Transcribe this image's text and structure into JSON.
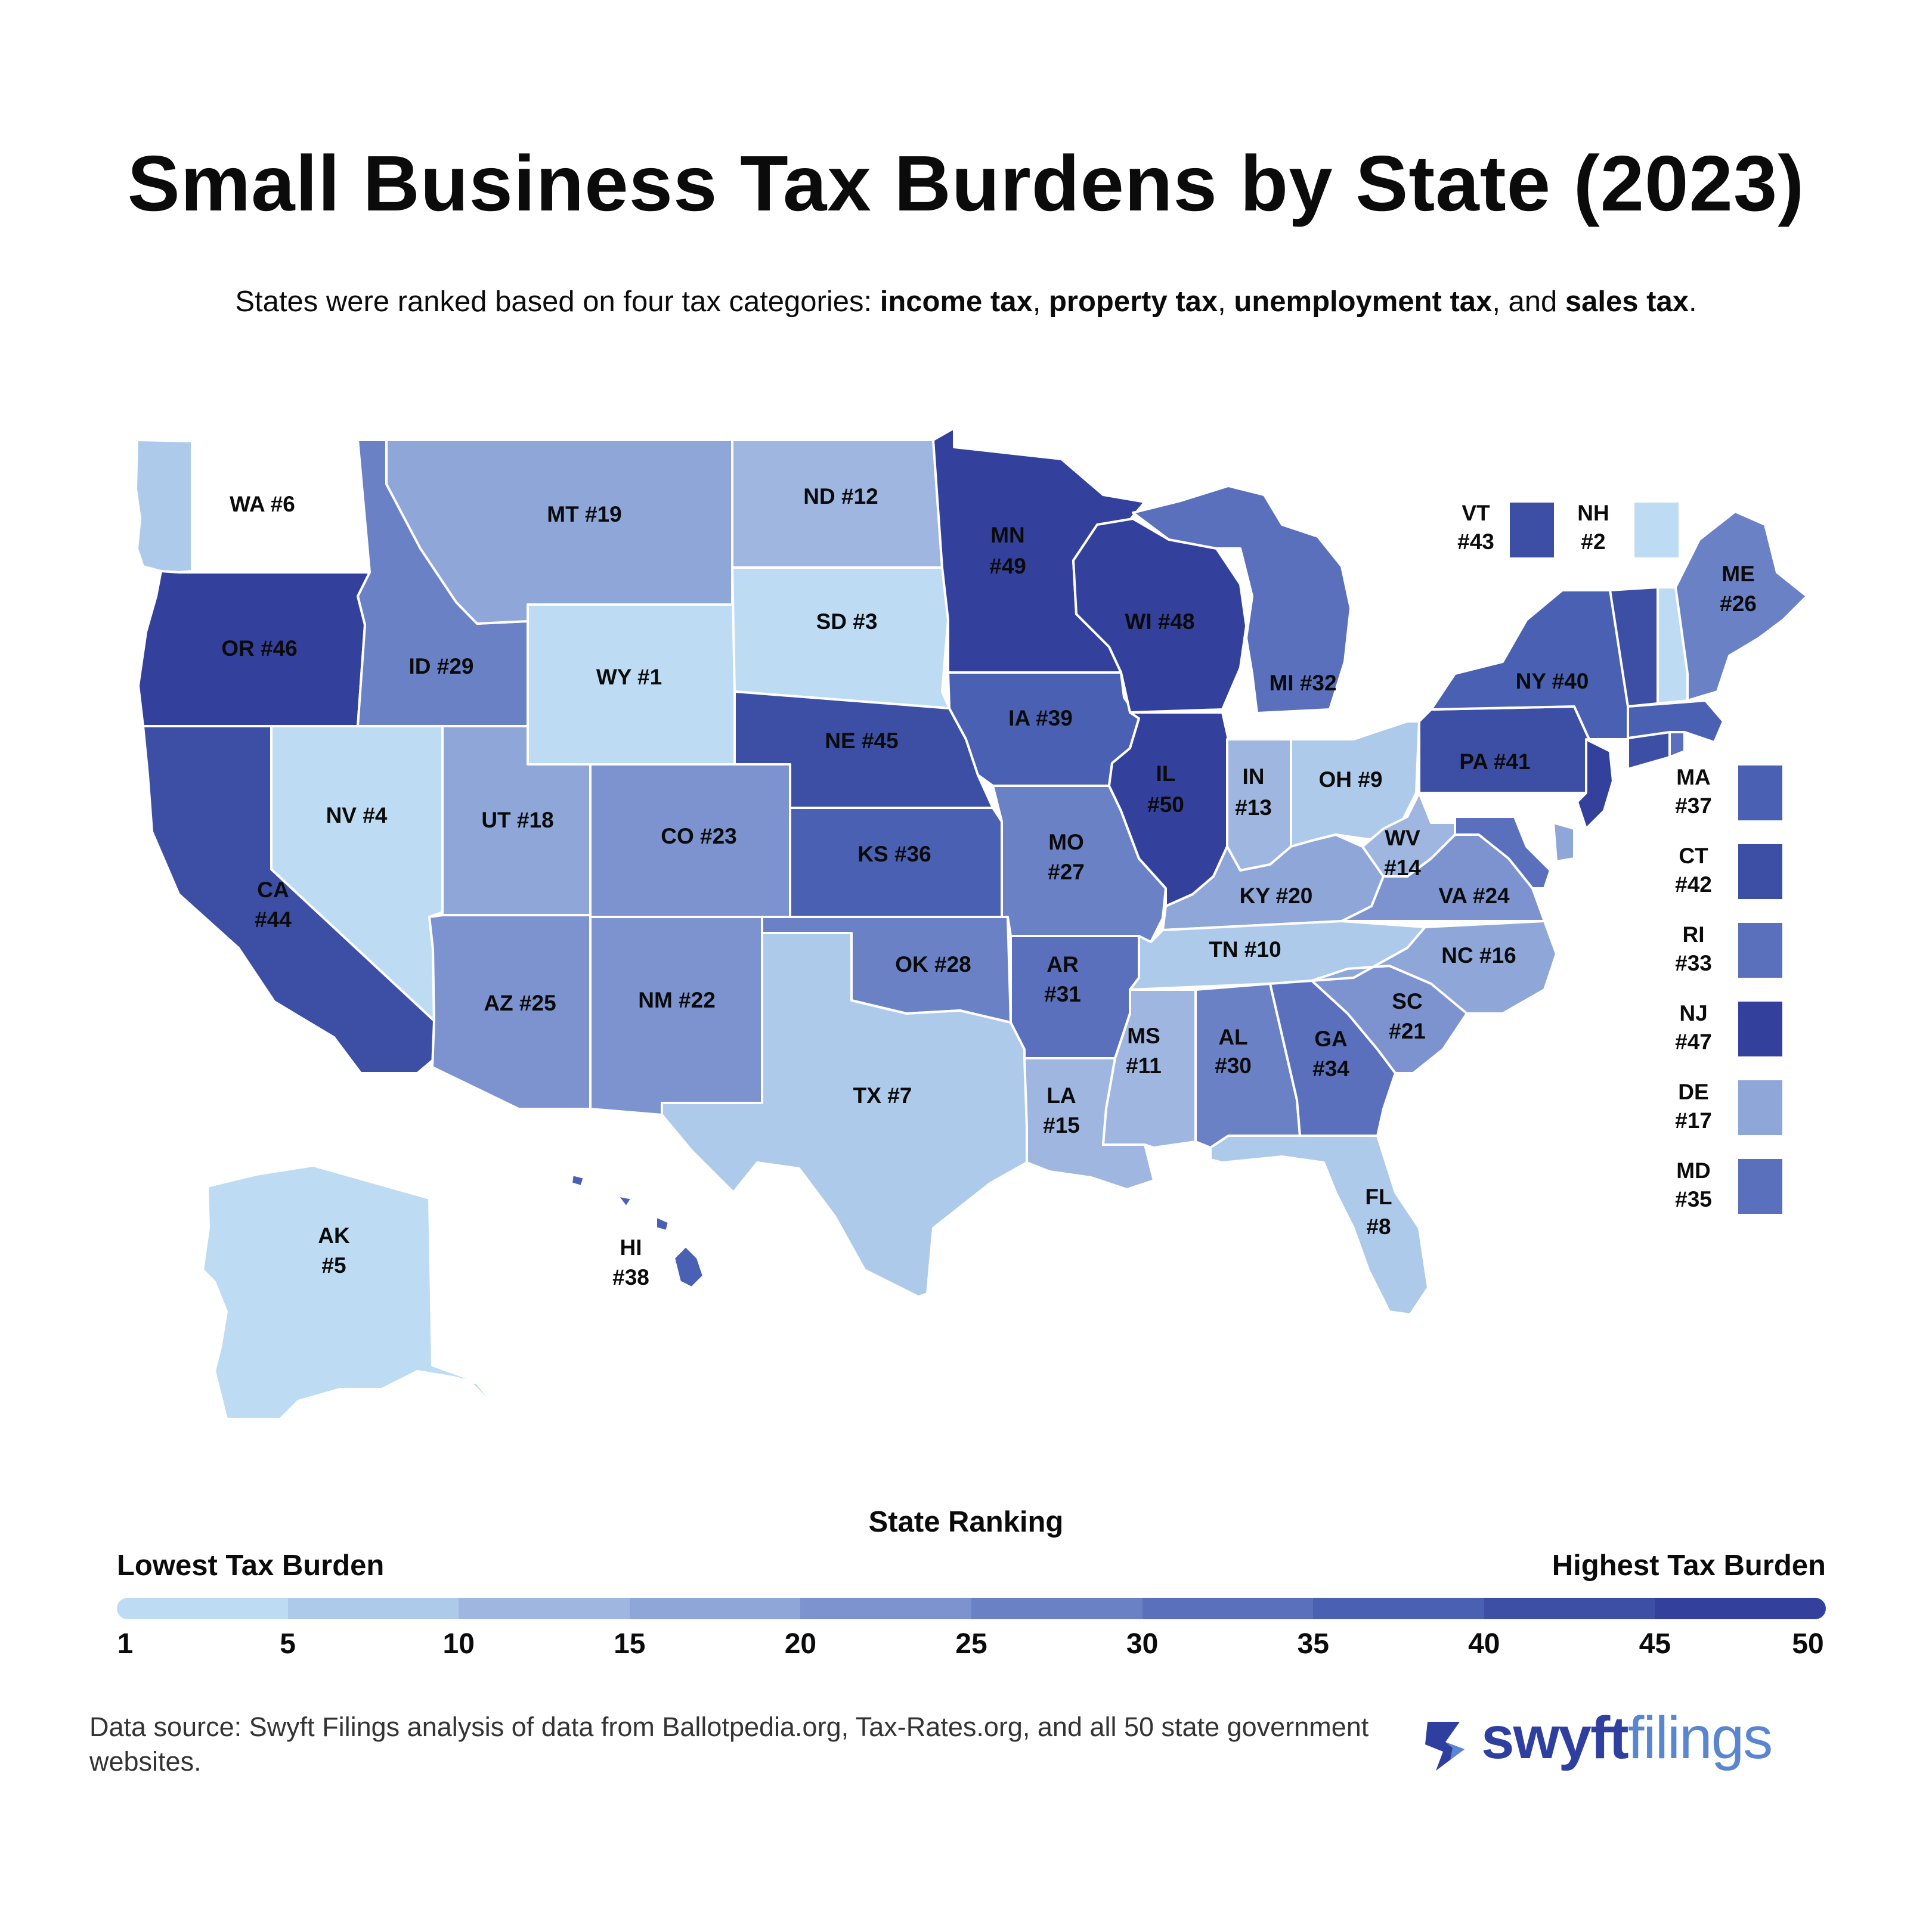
{
  "title": "Small Business Tax Burdens by State (2023)",
  "subtitle": {
    "intro": "States were ranked based on four tax categories: ",
    "cat1": "income tax",
    "sep1": ", ",
    "cat2": "property tax",
    "sep2": ", ",
    "cat3": "unemployment tax",
    "sep3": ", and ",
    "cat4": "sales tax",
    "end": "."
  },
  "color_scale": [
    "#bddcf3",
    "#aecaea",
    "#9fb6e0",
    "#8ea6d8",
    "#7c93cf",
    "#6b81c5",
    "#5a70bd",
    "#4a60b2",
    "#3d4fa5",
    "#33419c"
  ],
  "chart_data": {
    "type": "choropleth",
    "measure": "State Ranking",
    "scale_min": 1,
    "scale_max": 50,
    "states": [
      {
        "code": "WY",
        "rank": 1
      },
      {
        "code": "NH",
        "rank": 2
      },
      {
        "code": "SD",
        "rank": 3
      },
      {
        "code": "NV",
        "rank": 4
      },
      {
        "code": "AK",
        "rank": 5
      },
      {
        "code": "WA",
        "rank": 6
      },
      {
        "code": "TX",
        "rank": 7
      },
      {
        "code": "FL",
        "rank": 8
      },
      {
        "code": "OH",
        "rank": 9
      },
      {
        "code": "TN",
        "rank": 10
      },
      {
        "code": "MS",
        "rank": 11
      },
      {
        "code": "ND",
        "rank": 12
      },
      {
        "code": "IN",
        "rank": 13
      },
      {
        "code": "WV",
        "rank": 14
      },
      {
        "code": "LA",
        "rank": 15
      },
      {
        "code": "NC",
        "rank": 16
      },
      {
        "code": "DE",
        "rank": 17
      },
      {
        "code": "UT",
        "rank": 18
      },
      {
        "code": "MT",
        "rank": 19
      },
      {
        "code": "KY",
        "rank": 20
      },
      {
        "code": "SC",
        "rank": 21
      },
      {
        "code": "NM",
        "rank": 22
      },
      {
        "code": "CO",
        "rank": 23
      },
      {
        "code": "VA",
        "rank": 24
      },
      {
        "code": "AZ",
        "rank": 25
      },
      {
        "code": "ME",
        "rank": 26
      },
      {
        "code": "MO",
        "rank": 27
      },
      {
        "code": "OK",
        "rank": 28
      },
      {
        "code": "ID",
        "rank": 29
      },
      {
        "code": "AL",
        "rank": 30
      },
      {
        "code": "AR",
        "rank": 31
      },
      {
        "code": "MI",
        "rank": 32
      },
      {
        "code": "RI",
        "rank": 33
      },
      {
        "code": "GA",
        "rank": 34
      },
      {
        "code": "MD",
        "rank": 35
      },
      {
        "code": "KS",
        "rank": 36
      },
      {
        "code": "MA",
        "rank": 37
      },
      {
        "code": "HI",
        "rank": 38
      },
      {
        "code": "IA",
        "rank": 39
      },
      {
        "code": "NY",
        "rank": 40
      },
      {
        "code": "PA",
        "rank": 41
      },
      {
        "code": "CT",
        "rank": 42
      },
      {
        "code": "VT",
        "rank": 43
      },
      {
        "code": "CA",
        "rank": 44
      },
      {
        "code": "NE",
        "rank": 45
      },
      {
        "code": "OR",
        "rank": 46
      },
      {
        "code": "NJ",
        "rank": 47
      },
      {
        "code": "WI",
        "rank": 48
      },
      {
        "code": "MN",
        "rank": 49
      },
      {
        "code": "IL",
        "rank": 50
      }
    ]
  },
  "legend": {
    "title": "State Ranking",
    "low_label": "Lowest Tax Burden",
    "high_label": "Highest Tax Burden",
    "ticks": [
      "1",
      "5",
      "10",
      "15",
      "20",
      "25",
      "30",
      "35",
      "40",
      "45",
      "50"
    ]
  },
  "source": "Data source: Swyft Filings analysis of data from Ballotpedia.org, Tax-Rates.org, and all 50 state government websites.",
  "brand": {
    "part1": "swyft",
    "part2": "filings"
  }
}
